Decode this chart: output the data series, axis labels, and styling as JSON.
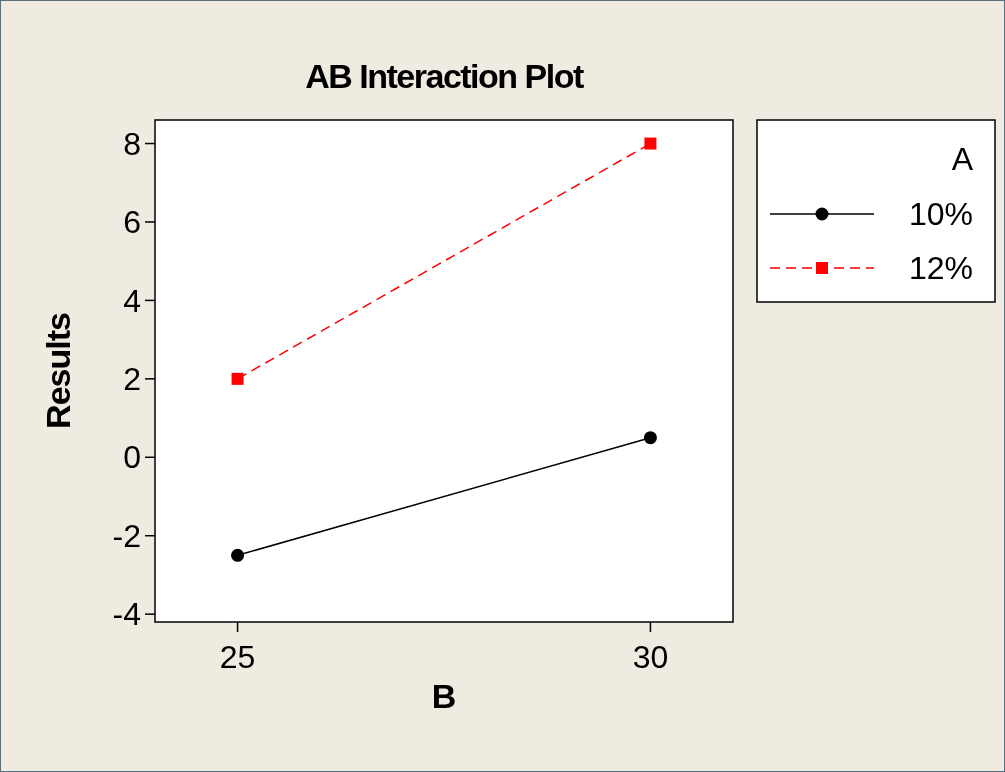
{
  "chart_data": {
    "type": "line",
    "title": "AB Interaction Plot",
    "xlabel": "B",
    "ylabel": "Results",
    "legend_title": "A",
    "categories": [
      "25",
      "30"
    ],
    "ylim": [
      -4.2,
      8.6
    ],
    "yticks": [
      -4,
      -2,
      0,
      2,
      4,
      6,
      8
    ],
    "grid": false,
    "legend": "right",
    "series": [
      {
        "name": "10%",
        "color": "#000000",
        "values": [
          -2.5,
          0.5
        ],
        "marker": "circle",
        "line_style": "solid"
      },
      {
        "name": "12%",
        "color": "#ff0000",
        "values": [
          2,
          8
        ],
        "marker": "square",
        "line_style": "dashed"
      }
    ]
  }
}
